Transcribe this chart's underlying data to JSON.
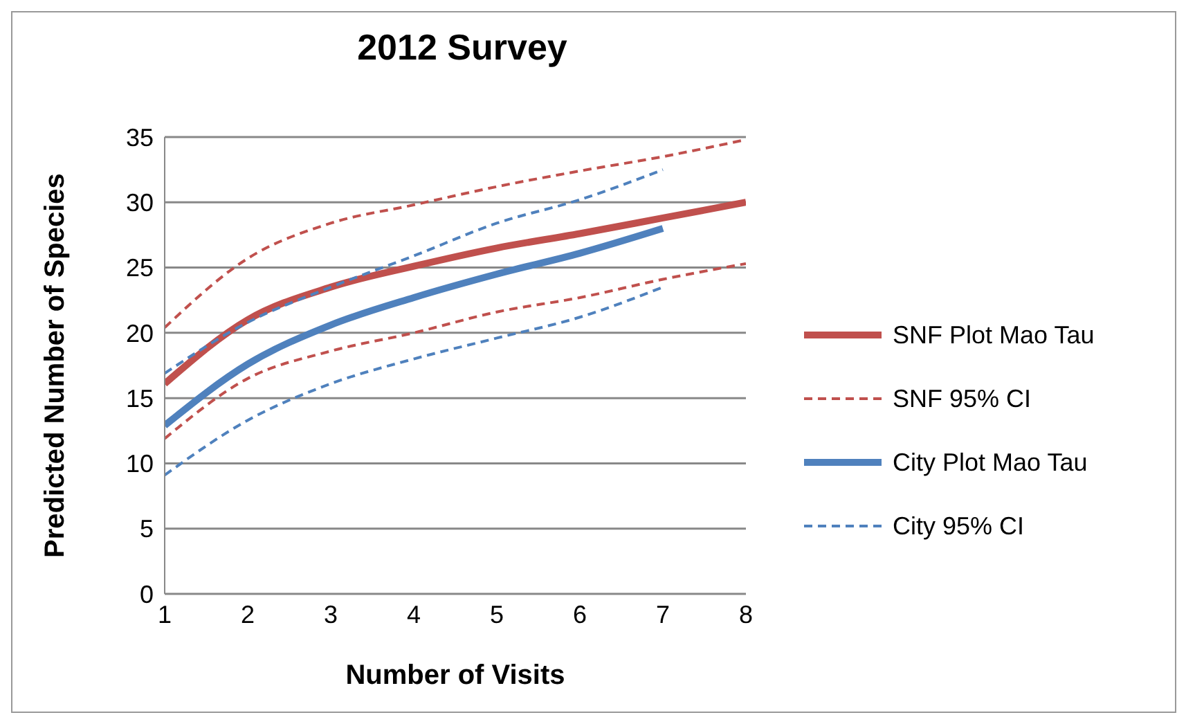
{
  "chart_data": {
    "type": "line",
    "title": "2012 Survey",
    "xlabel": "Number of Visits",
    "ylabel": "Predicted Number of Species",
    "x": [
      1,
      2,
      3,
      4,
      5,
      6,
      7,
      8
    ],
    "xlim": [
      1,
      8
    ],
    "xticks": [
      1,
      2,
      3,
      4,
      5,
      6,
      7,
      8
    ],
    "ylim": [
      0,
      35
    ],
    "yticks": [
      0,
      5,
      10,
      15,
      20,
      25,
      30,
      35
    ],
    "grid": "y",
    "legend": "right",
    "marker": "none",
    "series": [
      {
        "name": "SNF Plot Mao Tau",
        "color": "#c0504d",
        "line_style": "solid",
        "values": [
          16.1,
          21.0,
          23.5,
          25.1,
          26.5,
          27.6,
          28.8,
          30.0
        ]
      },
      {
        "name": "SNF 95% CI",
        "color": "#c0504d",
        "line_style": "dashed",
        "values": [
          20.4,
          25.7,
          28.4,
          29.8,
          31.2,
          32.4,
          33.5,
          34.8
        ]
      },
      {
        "name": null,
        "color": "#c0504d",
        "line_style": "dashed",
        "values": [
          11.9,
          16.5,
          18.6,
          20.0,
          21.6,
          22.7,
          24.1,
          25.3
        ]
      },
      {
        "name": "City Plot Mao Tau",
        "color": "#4f81bd",
        "line_style": "solid",
        "values": [
          12.9,
          17.6,
          20.6,
          22.7,
          24.5,
          26.1,
          28.0,
          null
        ]
      },
      {
        "name": "City 95% CI",
        "color": "#4f81bd",
        "line_style": "dashed",
        "values": [
          16.9,
          20.8,
          23.5,
          25.9,
          28.4,
          30.2,
          32.5,
          null
        ]
      },
      {
        "name": null,
        "color": "#4f81bd",
        "line_style": "dashed",
        "values": [
          9.1,
          13.3,
          16.1,
          18.0,
          19.6,
          21.2,
          23.5,
          null
        ]
      }
    ]
  }
}
